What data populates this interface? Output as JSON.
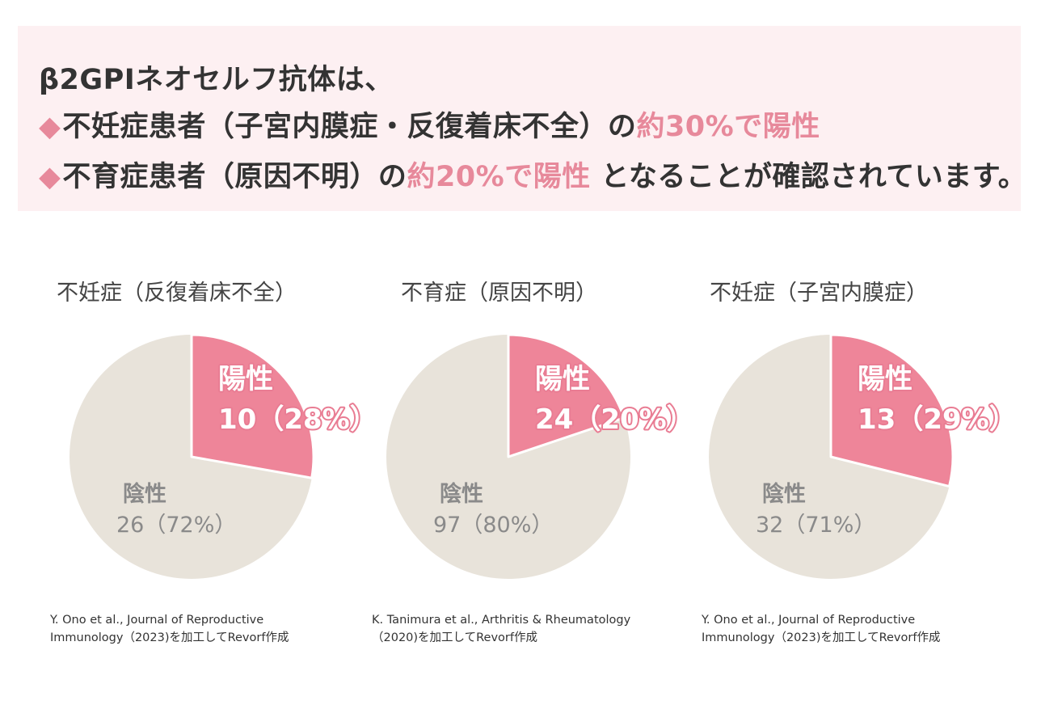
{
  "header": {
    "line1": "β2GPIネオセルフ抗体は、",
    "line2_marker": "◆",
    "line2_text": "不妊症患者（子宮内膜症・反復着床不全）の",
    "line2_accent": "約30%で陽性",
    "line3_marker": "◆",
    "line3_text": "不育症患者（原因不明）の",
    "line3_accent": "約20%で陽性",
    "line3_tail": " となることが確認されています。"
  },
  "colors": {
    "positive": "#ee8599",
    "negative": "#e8e3da",
    "positive_label": "#ffffff",
    "negative_label": "#8a8a8a",
    "header_bg": "#fdf0f2",
    "accent": "#e7899b"
  },
  "chart_data": [
    {
      "type": "pie",
      "title": "不妊症（反復着床不全）",
      "slices": [
        {
          "name": "陽性",
          "value": 10,
          "percent": 28,
          "label_value": "10（28%）"
        },
        {
          "name": "陰性",
          "value": 26,
          "percent": 72,
          "label_value": "26（72%）"
        }
      ],
      "source": [
        "Y. Ono et al., Journal of Reproductive",
        "Immunology（2023)を加工してRevorf作成"
      ]
    },
    {
      "type": "pie",
      "title": "不育症（原因不明）",
      "slices": [
        {
          "name": "陽性",
          "value": 24,
          "percent": 20,
          "label_value": "24（20%）"
        },
        {
          "name": "陰性",
          "value": 97,
          "percent": 80,
          "label_value": "97（80%）"
        }
      ],
      "source": [
        "K. Tanimura et al., Arthritis & Rheumatology",
        "（2020)を加工してRevorf作成"
      ]
    },
    {
      "type": "pie",
      "title": "不妊症（子宮内膜症）",
      "slices": [
        {
          "name": "陽性",
          "value": 13,
          "percent": 29,
          "label_value": "13（29%）"
        },
        {
          "name": "陰性",
          "value": 32,
          "percent": 71,
          "label_value": "32（71%）"
        }
      ],
      "source": [
        "Y. Ono et al., Journal of Reproductive",
        "Immunology（2023)を加工してRevorf作成"
      ]
    }
  ]
}
